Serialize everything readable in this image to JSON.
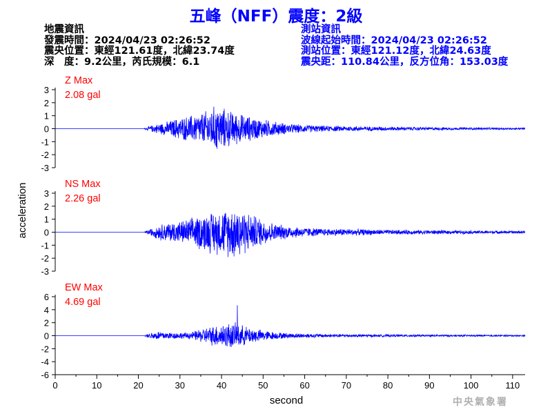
{
  "title": "五峰（NFF）震度：2級",
  "earthquake_info": {
    "heading": "地震資訊",
    "origin_time": "發震時間：2024/04/23 02:26:52",
    "epicenter": "震央位置：東經121.61度，北緯23.74度",
    "depth_magnitude": "深　度：9.2公里，芮氏規模：6.1"
  },
  "station_info": {
    "heading": "測站資訊",
    "wave_start": "波線起始時間：2024/04/23 02:26:52",
    "station_location": "測站位置：東經121.12度，北緯24.63度",
    "distance_azimuth": "震央距：110.84公里，反方位角：153.03度"
  },
  "credit": "中央氣象署",
  "colors": {
    "trace": "#0000ff",
    "max_label": "#ff0000",
    "title": "#0000ff",
    "station_text": "#0000ff",
    "axis": "#000000"
  },
  "chart_data": {
    "type": "line",
    "xlabel": "second",
    "ylabel": "acceleration",
    "xlim": [
      0,
      113
    ],
    "xticks": [
      0,
      10,
      20,
      30,
      40,
      50,
      60,
      70,
      80,
      90,
      100,
      110
    ],
    "panels": [
      {
        "name": "Z",
        "max_label": "Z Max",
        "max_value": "2.08 gal",
        "ylim": [
          -3,
          3
        ],
        "yticks": [
          3,
          2,
          1,
          0,
          -1,
          -2,
          -3
        ],
        "x": [
          0,
          21.5,
          23,
          25,
          27,
          29,
          31,
          33,
          35,
          37,
          38.5,
          40,
          42,
          44,
          46,
          48,
          50,
          53,
          56,
          60,
          65,
          70,
          80,
          90,
          100,
          113
        ],
        "envelope": [
          0,
          0.05,
          0.25,
          0.45,
          0.6,
          0.85,
          1.0,
          1.15,
          1.3,
          1.6,
          1.95,
          1.8,
          1.5,
          1.3,
          1.1,
          0.95,
          0.8,
          0.6,
          0.42,
          0.33,
          0.25,
          0.22,
          0.17,
          0.13,
          0.1,
          0.07
        ]
      },
      {
        "name": "NS",
        "max_label": "NS Max",
        "max_value": "2.26 gal",
        "ylim": [
          -3,
          3
        ],
        "yticks": [
          3,
          2,
          1,
          0,
          -1,
          -2,
          -3
        ],
        "x": [
          0,
          21.5,
          23,
          25,
          27,
          29,
          31,
          33,
          35,
          37,
          38.5,
          40,
          42,
          44,
          46,
          48,
          50,
          53,
          56,
          60,
          65,
          70,
          80,
          90,
          100,
          113
        ],
        "envelope": [
          0,
          0.05,
          0.3,
          0.65,
          0.8,
          0.9,
          1.0,
          1.2,
          1.5,
          1.7,
          1.8,
          1.9,
          2.1,
          2.26,
          1.7,
          1.4,
          1.1,
          0.7,
          0.55,
          0.4,
          0.3,
          0.3,
          0.2,
          0.18,
          0.14,
          0.12
        ]
      },
      {
        "name": "EW",
        "max_label": "EW Max",
        "max_value": "4.69 gal",
        "ylim": [
          -6,
          6
        ],
        "yticks": [
          6,
          4,
          2,
          0,
          -2,
          -4,
          -6
        ],
        "x": [
          0,
          21.5,
          23,
          25,
          27,
          29,
          31,
          33,
          35,
          37,
          38.5,
          40,
          42,
          44,
          46,
          48,
          50,
          53,
          56,
          60,
          65,
          70,
          80,
          90,
          100,
          113
        ],
        "envelope": [
          0,
          0.1,
          0.5,
          0.8,
          0.6,
          0.55,
          0.5,
          0.65,
          1.1,
          1.5,
          1.8,
          2.0,
          2.2,
          2.0,
          1.5,
          1.2,
          0.9,
          0.6,
          0.45,
          0.38,
          0.3,
          0.25,
          0.2,
          0.18,
          0.15,
          0.13
        ],
        "peak": {
          "x": 43.8,
          "value": 4.69
        }
      }
    ]
  }
}
